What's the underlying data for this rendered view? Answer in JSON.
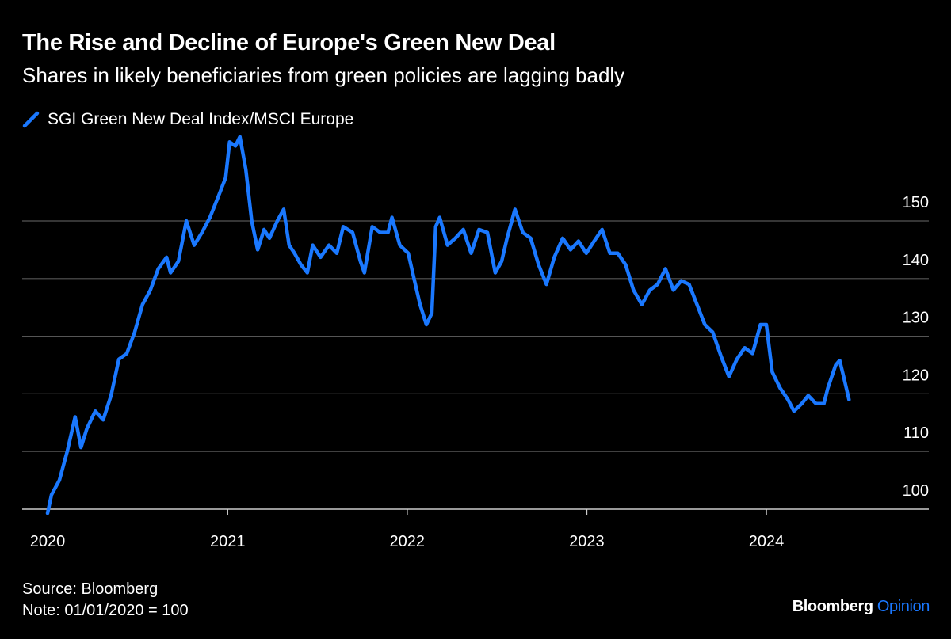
{
  "header": {
    "title": "The Rise and Decline of Europe's Green New Deal",
    "subtitle": "Shares in likely beneficiaries from green policies are lagging badly"
  },
  "footer": {
    "source": "Source: Bloomberg",
    "note": "Note: 01/01/2020 = 100",
    "logo_main": "Bloomberg",
    "logo_accent": "Opinion"
  },
  "colors": {
    "background": "#000000",
    "series": "#1a78ff",
    "grid": "#555555",
    "text": "#ffffff"
  },
  "chart_data": {
    "type": "line",
    "title": "The Rise and Decline of Europe's Green New Deal",
    "subtitle": "Shares in likely beneficiaries from green policies are lagging badly",
    "legend_placement": "top-left",
    "grid": true,
    "xlim": [
      "2020-01-01",
      "2024-06-30"
    ],
    "ylim": [
      100,
      165
    ],
    "x_ticks": [
      "2020",
      "2021",
      "2022",
      "2023",
      "2024"
    ],
    "y_ticks": [
      100,
      110,
      120,
      130,
      140,
      150
    ],
    "series": [
      {
        "name": "SGI Green New Deal Index/MSCI Europe",
        "color": "#1a78ff",
        "points": [
          [
            "2020-01-01",
            99.3
          ],
          [
            "2020-01-09",
            102.5
          ],
          [
            "2020-01-25",
            105
          ],
          [
            "2020-02-10",
            110
          ],
          [
            "2020-02-26",
            116
          ],
          [
            "2020-03-09",
            110.7
          ],
          [
            "2020-03-21",
            114
          ],
          [
            "2020-04-07",
            117
          ],
          [
            "2020-04-23",
            115.5
          ],
          [
            "2020-05-09",
            119.7
          ],
          [
            "2020-05-25",
            126
          ],
          [
            "2020-06-10",
            127
          ],
          [
            "2020-06-26",
            130.7
          ],
          [
            "2020-07-12",
            135.5
          ],
          [
            "2020-07-28",
            138
          ],
          [
            "2020-08-13",
            141.7
          ],
          [
            "2020-08-30",
            143.7
          ],
          [
            "2020-09-07",
            141
          ],
          [
            "2020-09-23",
            143
          ],
          [
            "2020-10-09",
            150
          ],
          [
            "2020-10-25",
            145.8
          ],
          [
            "2020-11-10",
            148
          ],
          [
            "2020-11-26",
            150.6
          ],
          [
            "2020-12-12",
            154
          ],
          [
            "2020-12-28",
            157.5
          ],
          [
            "2021-01-05",
            163.7
          ],
          [
            "2021-01-17",
            163
          ],
          [
            "2021-01-26",
            164.6
          ],
          [
            "2021-02-07",
            158.9
          ],
          [
            "2021-02-19",
            150
          ],
          [
            "2021-03-03",
            145
          ],
          [
            "2021-03-16",
            148.5
          ],
          [
            "2021-03-27",
            147
          ],
          [
            "2021-04-12",
            150
          ],
          [
            "2021-04-25",
            152
          ],
          [
            "2021-05-06",
            145.8
          ],
          [
            "2021-05-17",
            144.4
          ],
          [
            "2021-05-30",
            142.4
          ],
          [
            "2021-06-12",
            141
          ],
          [
            "2021-06-23",
            145.8
          ],
          [
            "2021-07-09",
            143.7
          ],
          [
            "2021-07-26",
            145.8
          ],
          [
            "2021-08-11",
            144.4
          ],
          [
            "2021-08-24",
            149
          ],
          [
            "2021-09-12",
            148
          ],
          [
            "2021-09-28",
            143
          ],
          [
            "2021-10-06",
            141
          ],
          [
            "2021-10-22",
            149
          ],
          [
            "2021-11-07",
            148
          ],
          [
            "2021-11-23",
            148
          ],
          [
            "2021-12-01",
            150.6
          ],
          [
            "2021-12-17",
            145.8
          ],
          [
            "2022-01-03",
            144.4
          ],
          [
            "2022-01-14",
            140.3
          ],
          [
            "2022-01-27",
            135.5
          ],
          [
            "2022-02-09",
            132
          ],
          [
            "2022-02-20",
            134
          ],
          [
            "2022-02-28",
            149
          ],
          [
            "2022-03-08",
            150.6
          ],
          [
            "2022-03-24",
            145.8
          ],
          [
            "2022-04-09",
            147
          ],
          [
            "2022-04-25",
            148.5
          ],
          [
            "2022-05-11",
            144.4
          ],
          [
            "2022-05-27",
            148.5
          ],
          [
            "2022-06-13",
            148
          ],
          [
            "2022-06-29",
            141
          ],
          [
            "2022-07-12",
            143
          ],
          [
            "2022-07-23",
            147
          ],
          [
            "2022-08-08",
            152
          ],
          [
            "2022-08-24",
            148
          ],
          [
            "2022-09-09",
            147
          ],
          [
            "2022-09-25",
            142.4
          ],
          [
            "2022-10-11",
            139
          ],
          [
            "2022-10-27",
            143.7
          ],
          [
            "2022-11-13",
            147
          ],
          [
            "2022-11-29",
            145
          ],
          [
            "2022-12-15",
            146.5
          ],
          [
            "2022-12-31",
            144.4
          ],
          [
            "2023-01-16",
            146.5
          ],
          [
            "2023-02-01",
            148.5
          ],
          [
            "2023-02-17",
            144.4
          ],
          [
            "2023-03-05",
            144.4
          ],
          [
            "2023-03-21",
            142.4
          ],
          [
            "2023-04-06",
            138
          ],
          [
            "2023-04-23",
            135.5
          ],
          [
            "2023-05-09",
            138
          ],
          [
            "2023-05-25",
            139
          ],
          [
            "2023-06-10",
            141.7
          ],
          [
            "2023-06-26",
            138
          ],
          [
            "2023-07-12",
            139.6
          ],
          [
            "2023-07-28",
            139
          ],
          [
            "2023-08-13",
            135.5
          ],
          [
            "2023-08-29",
            132
          ],
          [
            "2023-09-14",
            130.7
          ],
          [
            "2023-10-01",
            126.5
          ],
          [
            "2023-10-17",
            123
          ],
          [
            "2023-11-02",
            126
          ],
          [
            "2023-11-18",
            128
          ],
          [
            "2023-12-04",
            127
          ],
          [
            "2023-12-20",
            132
          ],
          [
            "2024-01-01",
            132
          ],
          [
            "2024-01-13",
            123.8
          ],
          [
            "2024-01-29",
            121
          ],
          [
            "2024-02-14",
            119
          ],
          [
            "2024-02-26",
            117
          ],
          [
            "2024-03-13",
            118.3
          ],
          [
            "2024-03-26",
            119.7
          ],
          [
            "2024-04-11",
            118.3
          ],
          [
            "2024-04-27",
            118.3
          ],
          [
            "2024-05-05",
            121
          ],
          [
            "2024-05-21",
            125
          ],
          [
            "2024-05-29",
            125.8
          ],
          [
            "2024-06-06",
            123
          ],
          [
            "2024-06-17",
            119
          ]
        ]
      }
    ]
  }
}
